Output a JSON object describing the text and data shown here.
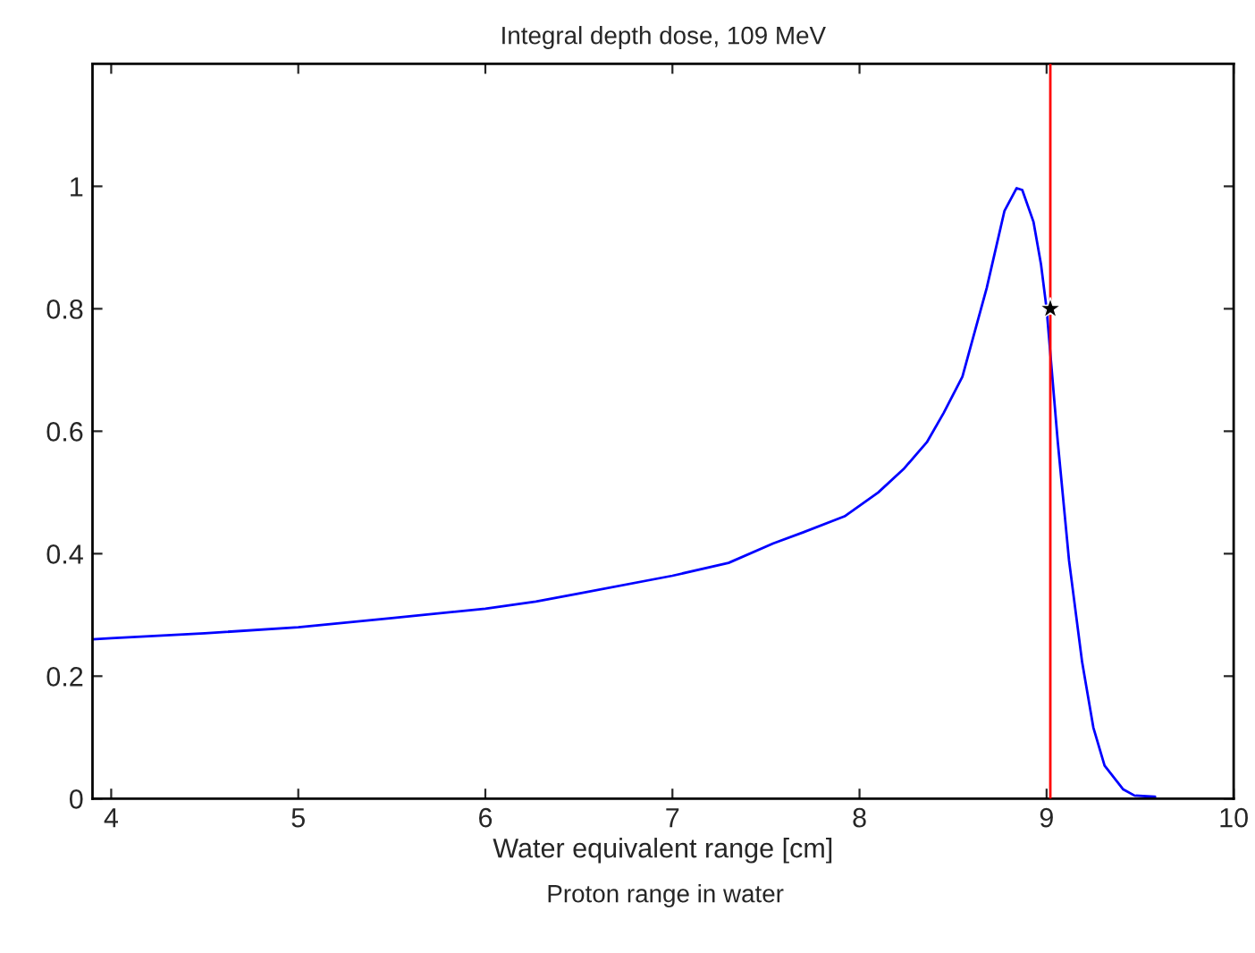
{
  "chart_data": {
    "type": "line",
    "title": "Integral depth dose, 109 MeV",
    "xlabel": "Water equivalent range [cm]",
    "annotations": [
      "Proton range in water"
    ],
    "series": [
      {
        "color": "#0000ff",
        "marker": "none",
        "x": [
          3.9,
          4.0,
          4.5,
          5.0,
          5.5,
          6.0,
          6.27,
          6.5,
          7.0,
          7.3,
          7.54,
          7.7,
          7.92,
          8.1,
          8.235,
          8.36,
          8.45,
          8.55,
          8.68,
          8.775,
          8.84,
          8.87,
          8.93,
          8.97,
          9.0,
          9.06,
          9.12,
          9.19,
          9.25,
          9.31,
          9.41,
          9.47,
          9.58
        ],
        "values": [
          0.26,
          0.262,
          0.27,
          0.28,
          0.295,
          0.31,
          0.322,
          0.335,
          0.364,
          0.385,
          0.417,
          0.435,
          0.461,
          0.5,
          0.538,
          0.582,
          0.63,
          0.689,
          0.834,
          0.96,
          0.997,
          0.994,
          0.942,
          0.873,
          0.8,
          0.582,
          0.389,
          0.223,
          0.116,
          0.054,
          0.015,
          0.005,
          0.003
        ]
      },
      {
        "type": "scatter",
        "color": "#000000",
        "marker": "star",
        "x": [
          9.02
        ],
        "values": [
          0.8
        ]
      }
    ],
    "ref_lines": [
      {
        "axis": "x",
        "value": 9.02,
        "color": "#ff0000",
        "line_style": "solid"
      }
    ],
    "xlim": [
      3.9,
      10
    ],
    "xticks": [
      4,
      5,
      6,
      7,
      8,
      9,
      10
    ],
    "ylim": [
      0,
      1.2
    ],
    "yticks": [
      0,
      0.2,
      0.4,
      0.6,
      0.8,
      1
    ],
    "grid": false,
    "legend": false
  }
}
